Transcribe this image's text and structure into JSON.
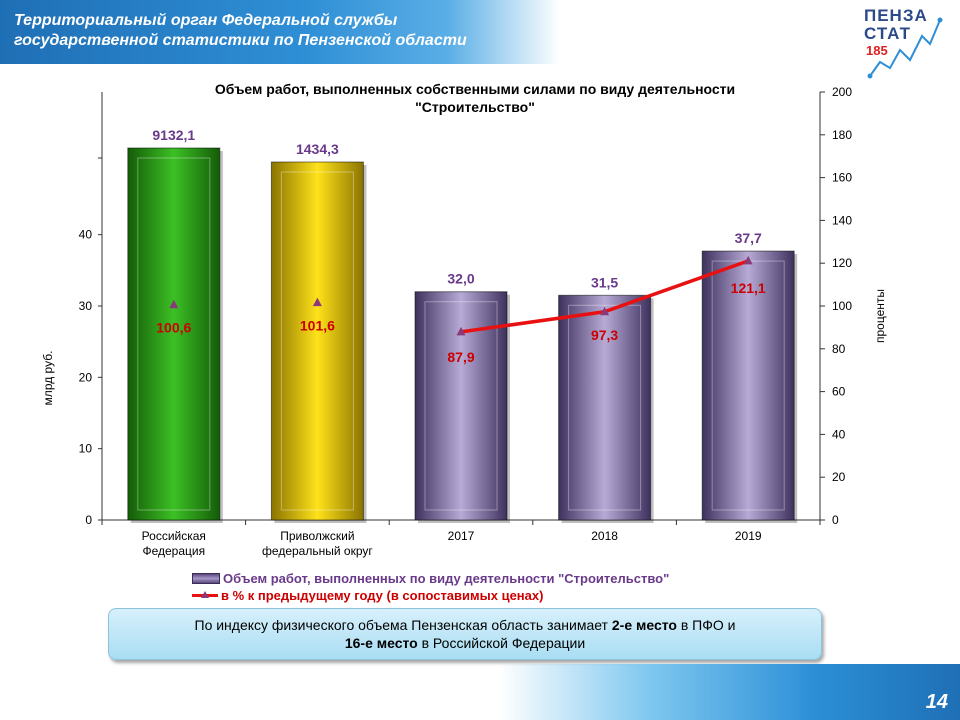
{
  "header": {
    "title_line1": "Территориальный орган Федеральной службы",
    "title_line2": "государственной  статистики по Пензенской области"
  },
  "logo": {
    "line1": "ПЕНЗА",
    "line2": "СТАТ",
    "number": "185"
  },
  "chart_data": {
    "type": "bar",
    "title_line1": "Объем работ, выполненных собственными силами по виду деятельности",
    "title_line2": "\"Строительство\"",
    "categories": [
      "Российская Федерация",
      "Приволжский федеральный округ",
      "2017",
      "2018",
      "2019"
    ],
    "category_labels": [
      [
        "Российская",
        "Федерация"
      ],
      [
        "Приволжский",
        "федеральный  округ"
      ],
      [
        "2017"
      ],
      [
        "2018"
      ],
      [
        "2019"
      ]
    ],
    "ylabel": "млрд руб.",
    "y2label": "проценты",
    "ylim": [
      0,
      60
    ],
    "y_ticks": [
      0,
      10,
      20,
      30,
      40
    ],
    "y2lim": [
      0,
      200
    ],
    "y2_ticks": [
      0,
      20,
      40,
      60,
      80,
      100,
      120,
      140,
      160,
      180,
      200
    ],
    "axis_break": true,
    "series": [
      {
        "name": "Объем работ, выполненных по виду деятельности \"Строительство\"",
        "values": [
          9132.1,
          1434.3,
          32.0,
          31.5,
          37.7
        ],
        "value_labels": [
          "9132,1",
          "1434,3",
          "32,0",
          "31,5",
          "37,7"
        ],
        "colors": [
          "#2e9a1a",
          "#e3c200",
          "#8070a8",
          "#8070a8",
          "#8070a8"
        ]
      },
      {
        "name": "в % к предыдущему году (в сопоставимых ценах)",
        "axis": "secondary",
        "values": [
          100.6,
          101.6,
          87.9,
          97.3,
          121.1
        ],
        "value_labels": [
          "100,6",
          "101,6",
          "87,9",
          "97,3",
          "121,1"
        ],
        "line_color": "#e81010",
        "marker_color": "#8a3a7a",
        "line_connects": [
          "2017",
          "2018",
          "2019"
        ]
      }
    ],
    "grid": false
  },
  "note": {
    "line1_a": "По индексу физического объема Пензенская область занимает ",
    "line1_b": "2-е место",
    "line1_c": " в ПФО и",
    "line2_a": "16-е место",
    "line2_b": " в Российской Федерации"
  },
  "footer": {
    "page_number": "14"
  }
}
